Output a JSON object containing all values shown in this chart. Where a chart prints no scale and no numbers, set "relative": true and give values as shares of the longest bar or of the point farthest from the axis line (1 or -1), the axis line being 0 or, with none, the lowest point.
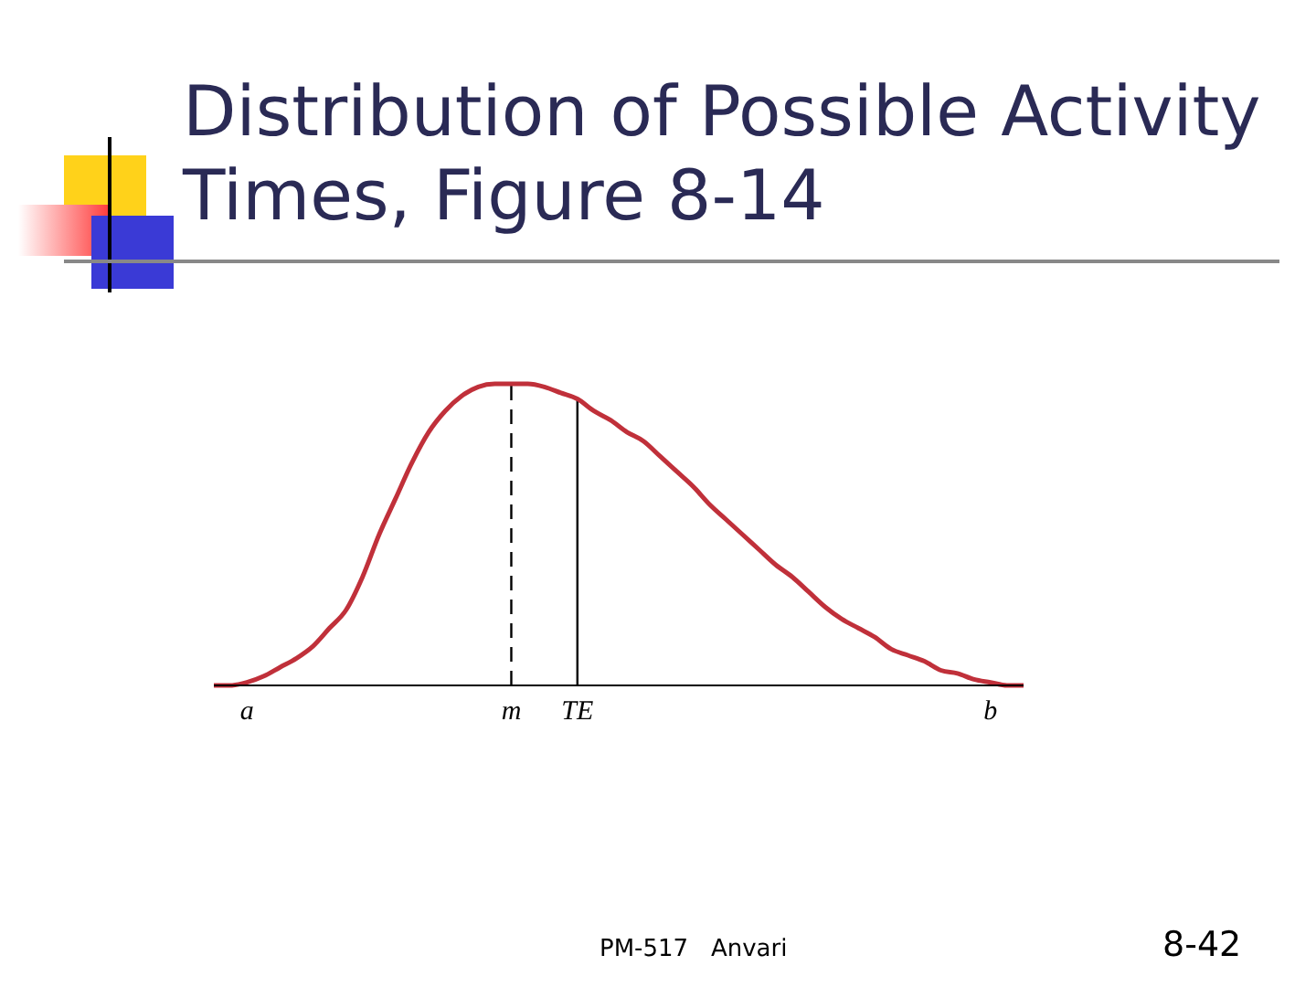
{
  "chart_data": {
    "type": "line",
    "title": "Distribution of Possible Activity Times, Figure 8-14",
    "relative": true,
    "color": "#c0303a",
    "categories": [
      null,
      null,
      "a",
      null,
      null,
      null,
      null,
      null,
      null,
      null,
      null,
      null,
      null,
      null,
      null,
      null,
      null,
      null,
      "m",
      null,
      null,
      null,
      "TE",
      null,
      null,
      null,
      null,
      null,
      null,
      null,
      null,
      null,
      null,
      null,
      null,
      null,
      null,
      null,
      null,
      null,
      null,
      null,
      null,
      null,
      null,
      null,
      null,
      "b",
      null,
      null
    ],
    "values": [
      0,
      0,
      0.01,
      0.03,
      0.06,
      0.09,
      0.13,
      0.19,
      0.25,
      0.36,
      0.5,
      0.62,
      0.74,
      0.84,
      0.91,
      0.96,
      0.99,
      1,
      1,
      1,
      0.99,
      0.97,
      0.95,
      0.91,
      0.88,
      0.84,
      0.81,
      0.76,
      0.71,
      0.66,
      0.6,
      0.55,
      0.5,
      0.45,
      0.4,
      0.36,
      0.31,
      0.26,
      0.22,
      0.19,
      0.16,
      0.12,
      0.1,
      0.08,
      0.05,
      0.04,
      0.02,
      0.01,
      0,
      0
    ],
    "ref_lines": [
      {
        "axis": "x",
        "value": "m",
        "line_style": "dashed",
        "color": "#000000"
      },
      {
        "axis": "x",
        "value": "TE",
        "line_style": "solid",
        "color": "#000000"
      }
    ],
    "annotations": [
      "PM-517   Anvari",
      "8-42"
    ],
    "marker": "none",
    "line_style": "solid"
  }
}
